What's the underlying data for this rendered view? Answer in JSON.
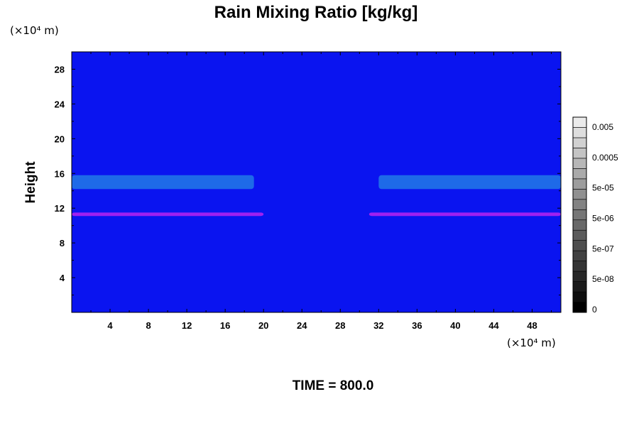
{
  "chart_data": {
    "type": "heatmap",
    "title": "Rain Mixing Ratio [kg/kg]",
    "ylabel": "Height",
    "x_unit": "(×10⁴ m)",
    "y_unit": "(×10⁴ m)",
    "xlim": [
      0,
      51
    ],
    "ylim": [
      0,
      30
    ],
    "x_ticks": [
      4,
      8,
      12,
      16,
      20,
      24,
      28,
      32,
      36,
      40,
      44,
      48
    ],
    "y_ticks": [
      4,
      8,
      12,
      16,
      20,
      24,
      28
    ],
    "background_color": "#0a14f0",
    "features": [
      {
        "kind": "band",
        "x_range": [
          0,
          19
        ],
        "y_range": [
          14.2,
          15.8
        ],
        "color": "#1e6ae8"
      },
      {
        "kind": "band",
        "x_range": [
          32,
          51
        ],
        "y_range": [
          14.2,
          15.8
        ],
        "color": "#1e6ae8"
      },
      {
        "kind": "band",
        "x_range": [
          0,
          20
        ],
        "y_range": [
          11.1,
          11.5
        ],
        "color": "#a020f0"
      },
      {
        "kind": "band",
        "x_range": [
          31,
          51
        ],
        "y_range": [
          11.1,
          11.5
        ],
        "color": "#a020f0"
      }
    ],
    "colorbar": {
      "labels": [
        "0.005",
        "0.0005",
        "5e-05",
        "5e-06",
        "5e-07",
        "5e-08",
        "0"
      ],
      "levels": 19
    },
    "footer": "TIME = 800.0"
  }
}
